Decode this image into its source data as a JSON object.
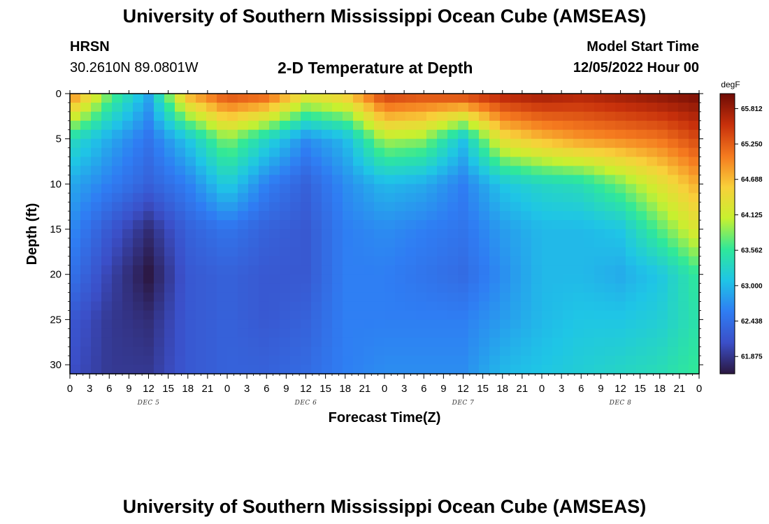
{
  "header": {
    "title": "University of Southern Mississippi Ocean Cube (AMSEAS)",
    "station": "HRSN",
    "coords": "30.2610N  89.0801W",
    "subtitle": "2-D Temperature at Depth",
    "model_start_label": "Model Start Time",
    "model_start_value": "12/05/2022 Hour 00"
  },
  "footer": {
    "title": "University of Southern Mississippi Ocean Cube (AMSEAS)"
  },
  "colors": {
    "scale": [
      "#2b1740",
      "#3b4fc8",
      "#2f7df3",
      "#1fc5e6",
      "#2fe89a",
      "#c8f02f",
      "#f8d03a",
      "#f57a1f",
      "#c7300b",
      "#6e0b05"
    ]
  },
  "chart_data": {
    "type": "heatmap",
    "title": "2-D Temperature at Depth",
    "xlabel": "Forecast Time(Z)",
    "ylabel": "Depth (ft)",
    "x_tick_labels": [
      "0",
      "3",
      "6",
      "9",
      "12",
      "15",
      "18",
      "21",
      "0",
      "3",
      "6",
      "9",
      "12",
      "15",
      "18",
      "21",
      "0",
      "3",
      "6",
      "9",
      "12",
      "15",
      "18",
      "21",
      "0",
      "3",
      "6",
      "9",
      "12",
      "15",
      "18",
      "21",
      "0"
    ],
    "day_labels": [
      "DEC 5",
      "DEC 6",
      "DEC 7",
      "DEC 8"
    ],
    "x_range_hours": [
      0,
      96
    ],
    "y_ticks": [
      0,
      5,
      10,
      15,
      20,
      25,
      30
    ],
    "ylim": [
      0,
      31
    ],
    "colorbar": {
      "unit": "degF",
      "min": 61.6,
      "max": 66.05,
      "labels": [
        "65.812",
        "65.250",
        "64.688",
        "64.125",
        "63.562",
        "63.000",
        "62.438",
        "61.875"
      ]
    },
    "profiles": {
      "hours": [
        0,
        6,
        12,
        18,
        24,
        30,
        36,
        42,
        48,
        54,
        60,
        66,
        72,
        78,
        84,
        90,
        96
      ],
      "depths_ft": [
        0,
        5,
        10,
        15,
        20,
        25,
        31
      ],
      "temps_degF": [
        [
          65.1,
          63.4,
          62.9,
          62.7,
          62.5,
          62.2,
          62.1
        ],
        [
          63.8,
          62.9,
          62.6,
          62.2,
          62.0,
          61.9,
          61.9
        ],
        [
          62.9,
          62.5,
          62.3,
          61.8,
          61.6,
          61.8,
          61.9
        ],
        [
          64.8,
          63.1,
          62.6,
          62.3,
          62.2,
          62.2,
          62.2
        ],
        [
          65.4,
          63.9,
          63.2,
          62.5,
          62.3,
          62.3,
          62.3
        ],
        [
          65.3,
          63.3,
          62.6,
          62.3,
          62.2,
          62.2,
          62.3
        ],
        [
          64.4,
          62.7,
          62.3,
          62.2,
          62.2,
          62.3,
          62.4
        ],
        [
          64.6,
          63.0,
          62.7,
          62.6,
          62.6,
          62.6,
          62.6
        ],
        [
          65.5,
          64.0,
          63.0,
          62.7,
          62.6,
          62.6,
          62.7
        ],
        [
          65.4,
          63.9,
          62.9,
          62.6,
          62.5,
          62.6,
          62.7
        ],
        [
          65.5,
          63.1,
          62.6,
          62.5,
          62.4,
          62.6,
          62.7
        ],
        [
          65.7,
          64.4,
          63.1,
          62.8,
          62.7,
          62.8,
          63.0
        ],
        [
          65.8,
          64.7,
          63.3,
          63.0,
          63.0,
          63.0,
          63.1
        ],
        [
          65.7,
          64.9,
          63.4,
          63.0,
          63.0,
          63.1,
          63.2
        ],
        [
          65.8,
          65.0,
          63.8,
          63.1,
          62.9,
          63.1,
          63.3
        ],
        [
          65.9,
          65.1,
          64.3,
          63.7,
          63.1,
          63.2,
          63.4
        ],
        [
          66.0,
          65.4,
          64.8,
          64.3,
          63.6,
          63.5,
          63.6
        ]
      ]
    }
  }
}
